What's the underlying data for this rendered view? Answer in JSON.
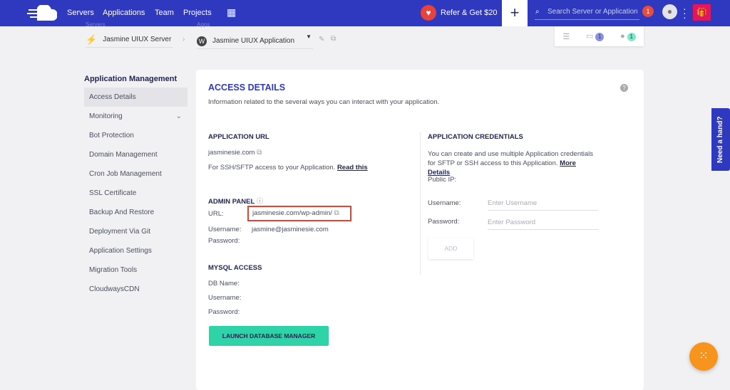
{
  "nav": {
    "items": [
      "Servers",
      "Applications",
      "Team",
      "Projects"
    ],
    "refer": "Refer & Get $20",
    "search_placeholder": "Search Server or Application",
    "notifications": "1"
  },
  "breadcrumb": {
    "servers_label": "Servers",
    "server": "Jasmine UIUX Server",
    "apps_label": "Apps",
    "app": "Jasmine UIUX Application"
  },
  "mini_bar": {
    "folder_count": "1",
    "users_count": "1"
  },
  "sidebar": {
    "title": "Application Management",
    "items": [
      "Access Details",
      "Monitoring",
      "Bot Protection",
      "Domain Management",
      "Cron Job Management",
      "SSL Certificate",
      "Backup And Restore",
      "Deployment Via Git",
      "Application Settings",
      "Migration Tools",
      "CloudwaysCDN"
    ]
  },
  "main": {
    "title": "ACCESS DETAILS",
    "subtitle": "Information related to the several ways you can interact with your application.",
    "app_url": {
      "heading": "APPLICATION URL",
      "url": "jasminesie.com",
      "ssh_text": "For SSH/SFTP access to your Application.",
      "read_this": "Read this"
    },
    "admin": {
      "heading": "ADMIN PANEL",
      "url_label": "URL:",
      "url": "jasminesie.com/wp-admin/",
      "username_label": "Username:",
      "username": "jasmine@jasminesie.com",
      "password_label": "Password:"
    },
    "mysql": {
      "heading": "MYSQL ACCESS",
      "db_label": "DB Name:",
      "username_label": "Username:",
      "password_label": "Password:",
      "button": "LAUNCH DATABASE MANAGER"
    },
    "creds": {
      "heading": "APPLICATION CREDENTIALS",
      "text": "You can create and use multiple Application credentials for SFTP or SSH access to this Application.",
      "more": "More Details",
      "public_ip": "Public IP:",
      "username_label": "Username:",
      "username_placeholder": "Enter Username",
      "password_label": "Password:",
      "password_placeholder": "Enter Password",
      "add": "ADD"
    }
  },
  "help_tab": "Need a hand?",
  "colors": {
    "brand": "#2e39bf",
    "accent": "#2ed3a8",
    "highlight": "#e8412c",
    "fab": "#f7941d"
  }
}
